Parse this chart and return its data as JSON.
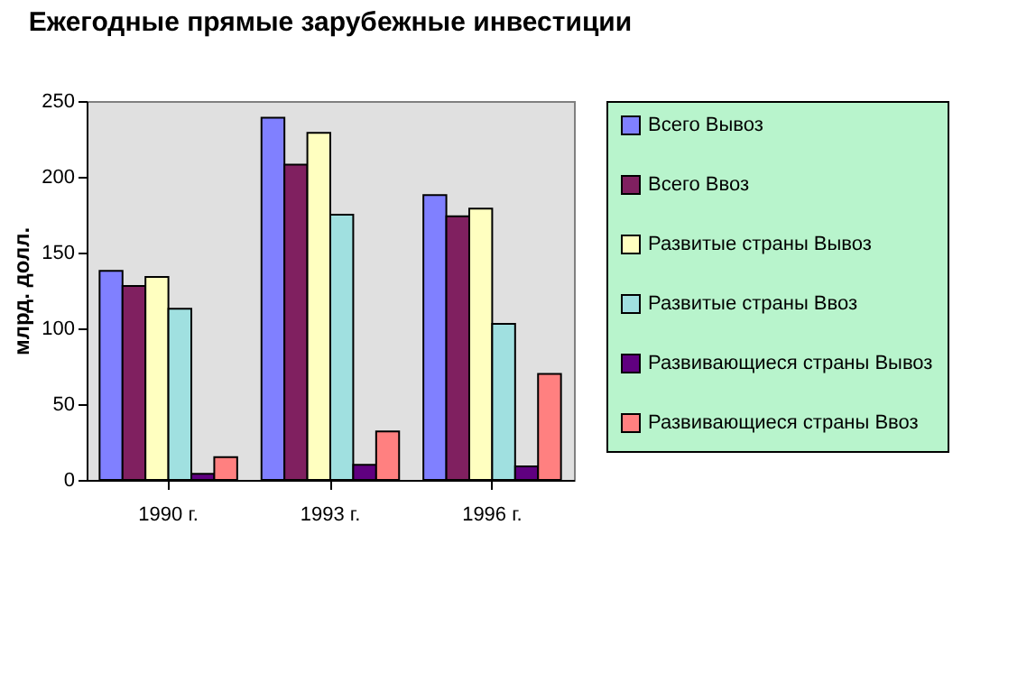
{
  "chart_data": {
    "type": "bar",
    "title": "Ежегодные прямые зарубежные инвестиции",
    "ylabel": "млрд. долл.",
    "categories": [
      "1990 г.",
      "1993 г.",
      "1996 г."
    ],
    "series": [
      {
        "name": "Всего Вывоз",
        "color": "#8080ff",
        "values": [
          138,
          239,
          188
        ]
      },
      {
        "name": "Всего Ввоз",
        "color": "#802060",
        "values": [
          128,
          208,
          174
        ]
      },
      {
        "name": "Развитые страны Вывоз",
        "color": "#ffffc0",
        "values": [
          134,
          229,
          179
        ]
      },
      {
        "name": "Развитые страны Ввоз",
        "color": "#a0e0e0",
        "values": [
          113,
          175,
          103
        ]
      },
      {
        "name": "Развивающиеся страны Вывоз",
        "color": "#600080",
        "values": [
          4,
          10,
          9
        ]
      },
      {
        "name": "Развивающиеся страны Ввоз",
        "color": "#ff8080",
        "values": [
          15,
          32,
          70
        ]
      }
    ],
    "ylim": [
      0,
      250
    ],
    "yticks": [
      0,
      50,
      100,
      150,
      200,
      250
    ],
    "grid": false,
    "legend": "right"
  }
}
